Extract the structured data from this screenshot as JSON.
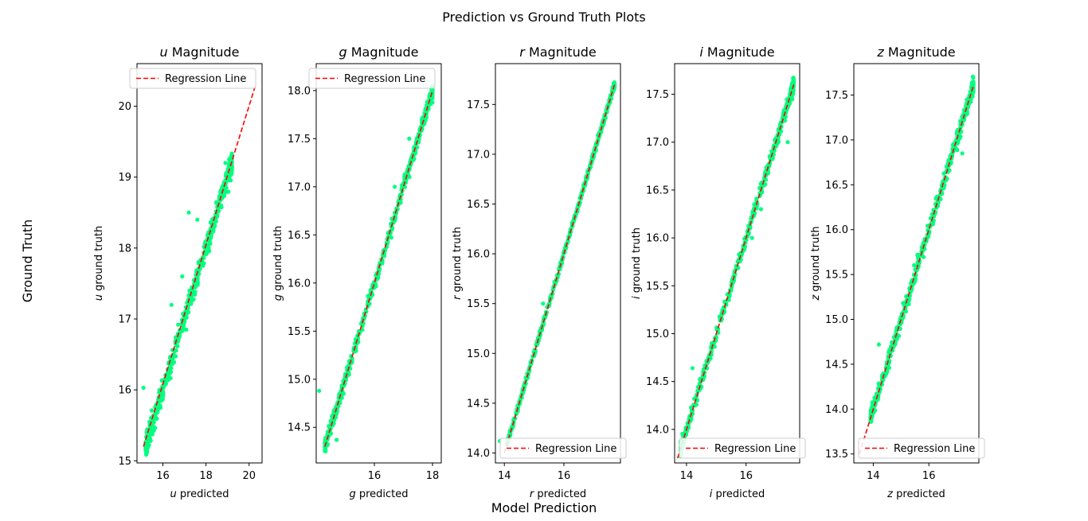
{
  "figure": {
    "title": "Prediction vs Ground Truth Plots",
    "supxlabel": "Model Prediction",
    "supylabel": "Ground Truth"
  },
  "colors": {
    "points": "#00ff7f",
    "regression": "#ff0000",
    "axes": "#000000"
  },
  "chart_data": [
    {
      "type": "scatter",
      "band": "u",
      "title": "u Magnitude",
      "xlabel": "u predicted",
      "ylabel": "u ground truth",
      "xlim": [
        14.8,
        20.6
      ],
      "ylim": [
        14.97,
        20.6
      ],
      "xticks": [
        16,
        18,
        20
      ],
      "yticks": [
        15,
        16,
        17,
        18,
        19,
        20
      ],
      "xtick_labels": [
        "16",
        "18",
        "20"
      ],
      "ytick_labels": [
        "15",
        "16",
        "17",
        "18",
        "19",
        "20"
      ],
      "legend": {
        "label": "Regression Line",
        "loc": "upper left"
      },
      "regression_line": {
        "x": [
          15.1,
          20.3
        ],
        "y": [
          15.2,
          20.3
        ]
      },
      "series": [
        {
          "range": [
            15.2,
            19.2
          ],
          "std": 0.07,
          "n": 600,
          "outliers": [
            [
              15.1,
              16.03
            ],
            [
              17.2,
              18.5
            ],
            [
              16.9,
              17.6
            ],
            [
              17.6,
              18.4
            ],
            [
              16.4,
              17.2
            ],
            [
              18.9,
              19.2
            ]
          ]
        }
      ]
    },
    {
      "type": "scatter",
      "band": "g",
      "title": "g Magnitude",
      "xlabel": "g predicted",
      "ylabel": "g ground truth",
      "xlim": [
        14.0,
        18.3
      ],
      "ylim": [
        14.13,
        18.28
      ],
      "xticks": [
        16,
        18
      ],
      "yticks": [
        14.5,
        15.0,
        15.5,
        16.0,
        16.5,
        17.0,
        17.5,
        18.0
      ],
      "xtick_labels": [
        "16",
        "18"
      ],
      "ytick_labels": [
        "14.5",
        "15.0",
        "15.5",
        "16.0",
        "16.5",
        "17.0",
        "17.5",
        "18.0"
      ],
      "legend": {
        "label": "Regression Line",
        "loc": "upper left"
      },
      "regression_line": {
        "x": [
          14.3,
          18.0
        ],
        "y": [
          14.3,
          18.0
        ]
      },
      "series": [
        {
          "range": [
            14.3,
            18.0
          ],
          "std": 0.035,
          "n": 600,
          "outliers": [
            [
              14.1,
              14.88
            ],
            [
              14.7,
              14.37
            ],
            [
              16.7,
              17.0
            ],
            [
              17.2,
              17.5
            ]
          ]
        }
      ]
    },
    {
      "type": "scatter",
      "band": "r",
      "title": "r Magnitude",
      "xlabel": "r predicted",
      "ylabel": "r ground truth",
      "xlim": [
        13.7,
        17.9
      ],
      "ylim": [
        13.9,
        17.91
      ],
      "xticks": [
        14,
        16
      ],
      "yticks": [
        14.0,
        14.5,
        15.0,
        15.5,
        16.0,
        16.5,
        17.0,
        17.5
      ],
      "xtick_labels": [
        "14",
        "16"
      ],
      "ytick_labels": [
        "14.0",
        "14.5",
        "15.0",
        "15.5",
        "16.0",
        "16.5",
        "17.0",
        "17.5"
      ],
      "legend": {
        "label": "Regression Line",
        "loc": "lower right"
      },
      "regression_line": {
        "x": [
          14.0,
          17.7
        ],
        "y": [
          14.0,
          17.7
        ]
      },
      "series": [
        {
          "range": [
            14.1,
            17.7
          ],
          "std": 0.015,
          "n": 600,
          "outliers": [
            [
              13.85,
              14.12
            ],
            [
              15.3,
              15.5
            ]
          ]
        }
      ]
    },
    {
      "type": "scatter",
      "band": "i",
      "title": "i Magnitude",
      "xlabel": "i predicted",
      "ylabel": "i ground truth",
      "xlim": [
        13.6,
        17.8
      ],
      "ylim": [
        13.65,
        17.82
      ],
      "xticks": [
        14,
        16
      ],
      "yticks": [
        14.0,
        14.5,
        15.0,
        15.5,
        16.0,
        16.5,
        17.0,
        17.5
      ],
      "xtick_labels": [
        "14",
        "16"
      ],
      "ytick_labels": [
        "14.0",
        "14.5",
        "15.0",
        "15.5",
        "16.0",
        "16.5",
        "17.0",
        "17.5"
      ],
      "legend": {
        "label": "Regression Line",
        "loc": "lower right"
      },
      "regression_line": {
        "x": [
          13.7,
          17.6
        ],
        "y": [
          13.7,
          17.6
        ]
      },
      "series": [
        {
          "range": [
            13.8,
            17.6
          ],
          "std": 0.035,
          "n": 600,
          "outliers": [
            [
              14.2,
              14.64
            ],
            [
              16.2,
              16.0
            ],
            [
              17.4,
              17.0
            ],
            [
              16.5,
              16.3
            ]
          ]
        }
      ]
    },
    {
      "type": "scatter",
      "band": "z",
      "title": "z Magnitude",
      "xlabel": "z predicted",
      "ylabel": "z ground truth",
      "xlim": [
        13.3,
        17.8
      ],
      "ylim": [
        13.4,
        17.85
      ],
      "xticks": [
        14,
        16
      ],
      "yticks": [
        13.5,
        14.0,
        14.5,
        15.0,
        15.5,
        16.0,
        16.5,
        17.0,
        17.5
      ],
      "xtick_labels": [
        "14",
        "16"
      ],
      "ytick_labels": [
        "13.5",
        "14.0",
        "14.5",
        "15.0",
        "15.5",
        "16.0",
        "16.5",
        "17.0",
        "17.5"
      ],
      "legend": {
        "label": "Regression Line",
        "loc": "lower right"
      },
      "regression_line": {
        "x": [
          13.5,
          17.6
        ],
        "y": [
          13.5,
          17.6
        ]
      },
      "series": [
        {
          "range": [
            13.9,
            17.6
          ],
          "std": 0.04,
          "n": 600,
          "outliers": [
            [
              14.2,
              14.72
            ],
            [
              15.8,
              15.85
            ],
            [
              17.2,
              16.85
            ],
            [
              15.5,
              15.5
            ]
          ]
        }
      ]
    }
  ]
}
